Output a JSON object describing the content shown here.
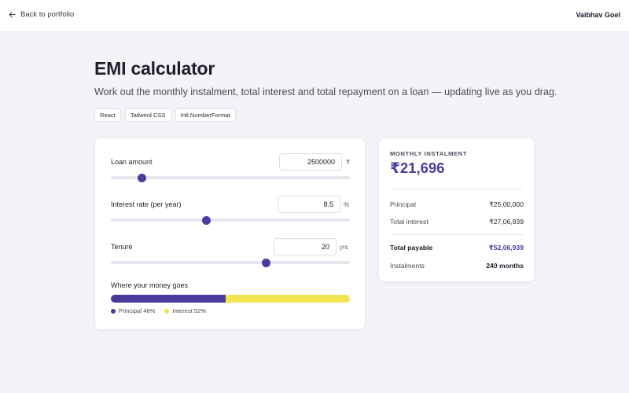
{
  "header": {
    "back_label": "Back to portfolio",
    "user_name": "Vaibhav Goel"
  },
  "page": {
    "title": "EMI calculator",
    "subtitle": "Work out the monthly instalment, total interest and total repayment on a loan — updating live as you drag.",
    "tags": [
      "React",
      "Tailwind CSS",
      "Intl.NumberFormat"
    ]
  },
  "calculator": {
    "loan": {
      "label": "Loan amount",
      "value": "2500000",
      "unit": "₹",
      "slider_fraction": 0.13
    },
    "rate": {
      "label": "Interest rate (per year)",
      "value": "8.5",
      "unit": "%",
      "slider_fraction": 0.4
    },
    "tenure": {
      "label": "Tenure",
      "value": "20",
      "unit": "yrs",
      "slider_fraction": 0.65
    },
    "split": {
      "title": "Where your money goes",
      "principal_fraction": 0.48,
      "principal_label": "Principal 48%",
      "interest_label": "Interest 52%"
    }
  },
  "result": {
    "monthly_label": "MONTHLY INSTALMENT",
    "monthly_value": "₹21,696",
    "rows": [
      {
        "label": "Principal",
        "value": "₹25,00,000"
      },
      {
        "label": "Total interest",
        "value": "₹27,06,939"
      },
      {
        "label": "Total payable",
        "value": "₹52,06,939"
      },
      {
        "label": "Instalments",
        "value": "240 months"
      }
    ]
  },
  "colors": {
    "accent": "#4a3b9c",
    "interest": "#f1e452",
    "background": "#f3f3f8"
  }
}
